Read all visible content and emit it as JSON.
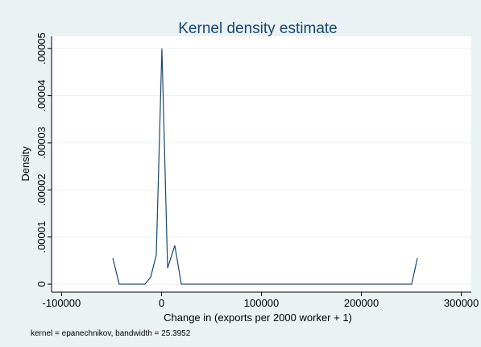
{
  "chart_data": {
    "type": "line",
    "title": "Kernel density estimate",
    "xlabel": "Change in (exports per 2000 worker + 1)",
    "ylabel": "Density",
    "note": "kernel = epanechnikov, bandwidth = 25.3952",
    "x": [
      -48700,
      -42300,
      -16500,
      -10800,
      -5200,
      400,
      6100,
      13300,
      19800,
      250300,
      256000
    ],
    "values": [
      5.5e-06,
      0,
      0,
      1.5e-06,
      6.2e-06,
      5e-05,
      3.4e-06,
      8.2e-06,
      0,
      0,
      5.5e-06
    ],
    "color": "#1a476f",
    "xlim": [
      -110000,
      310000
    ],
    "ylim": [
      -1.7e-06,
      5.26e-05
    ],
    "xticks": [
      -100000,
      0,
      100000,
      200000,
      300000
    ],
    "yticks": [
      0,
      {
        "value": 1e-05,
        "label": ".00001"
      },
      {
        "value": 2e-05,
        "label": ".00002"
      },
      {
        "value": 3e-05,
        "label": ".00003"
      },
      {
        "value": 4e-05,
        "label": ".00004"
      },
      {
        "value": 5e-05,
        "label": ".00005"
      }
    ],
    "grid": true
  }
}
